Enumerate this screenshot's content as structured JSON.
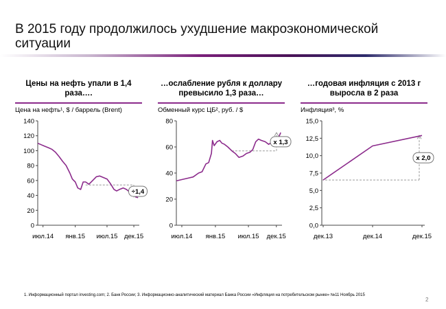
{
  "slide": {
    "title": "В 2015 году продолжилось ухудшение макроэкономической ситуации",
    "footnote": "1. Информационный портал investing.com; 2. Банк России; 3. Информационно-аналитический материал Банка России «Инфляция на потребительском рынке» №11 Ноябрь 2015",
    "page_number": "2"
  },
  "colors": {
    "line": "#8b2a8b",
    "axis": "#444444",
    "dashed": "#9a9a9a",
    "accent_rule": "#8b2a8b"
  },
  "panels": [
    {
      "heading": "Цены на нефть упали в 1,4 раза….",
      "axis_title": "Цена на нефть¹, $ / баррель (Brent)",
      "badge": "÷1,4"
    },
    {
      "heading": "…ослабление рубля к доллару превысило 1,3 раза…",
      "axis_title": "Обменный курс ЦБ², руб. / $",
      "badge": "x 1,3"
    },
    {
      "heading": "…годовая инфляция с 2013 г выросла в 2 раза",
      "axis_title": "Инфляция³, %",
      "badge": "x 2,0"
    }
  ],
  "chart_data": [
    {
      "type": "line",
      "title": "Цены на нефть упали в 1,4 раза….",
      "ylabel": "Цена на нефть¹, $ / баррель (Brent)",
      "ylim": [
        0,
        140
      ],
      "yticks": [
        "140",
        "120",
        "100",
        "80",
        "60",
        "40",
        "20",
        "0"
      ],
      "xlim": [
        "2014-06",
        "2016-01"
      ],
      "xticks": [
        "июл.14",
        "янв.15",
        "июл.15",
        "дек.15"
      ],
      "reference_level": 54,
      "annotation": "÷1,4",
      "series": [
        {
          "x": [
            "2014-06-01",
            "2014-06-20",
            "2014-07-10",
            "2014-08-01",
            "2014-08-20",
            "2014-09-10",
            "2014-10-01",
            "2014-10-20",
            "2014-11-10",
            "2014-12-01",
            "2014-12-15",
            "2015-01-01",
            "2015-01-15",
            "2015-02-01",
            "2015-02-15",
            "2015-03-01",
            "2015-03-20",
            "2015-04-10",
            "2015-05-01",
            "2015-05-20",
            "2015-06-10",
            "2015-07-01",
            "2015-07-20",
            "2015-08-10",
            "2015-08-25",
            "2015-09-10",
            "2015-10-01",
            "2015-10-20",
            "2015-11-10",
            "2015-11-25",
            "2015-12-10",
            "2015-12-25"
          ],
          "values": [
            110,
            108,
            106,
            104,
            102,
            98,
            92,
            86,
            80,
            70,
            62,
            58,
            50,
            48,
            58,
            58,
            55,
            60,
            65,
            66,
            64,
            62,
            56,
            48,
            46,
            48,
            50,
            48,
            44,
            46,
            38,
            37
          ]
        }
      ]
    },
    {
      "type": "line",
      "title": "…ослабление рубля к доллару превысило 1,3 раза…",
      "ylabel": "Обменный курс ЦБ², руб. / $",
      "ylim": [
        0,
        80
      ],
      "yticks": [
        "80",
        "60",
        "40",
        "20",
        "0"
      ],
      "xlim": [
        "2014-06",
        "2016-01"
      ],
      "xticks": [
        "июл.14",
        "янв.15",
        "июл.15",
        "дек.15"
      ],
      "reference_level": 57,
      "annotation": "x 1,3",
      "series": [
        {
          "x": [
            "2014-06-01",
            "2014-07-01",
            "2014-08-01",
            "2014-09-01",
            "2014-10-01",
            "2014-10-20",
            "2014-11-10",
            "2014-11-25",
            "2014-12-10",
            "2014-12-16",
            "2014-12-25",
            "2015-01-10",
            "2015-01-25",
            "2015-02-05",
            "2015-02-20",
            "2015-03-10",
            "2015-04-01",
            "2015-04-20",
            "2015-05-10",
            "2015-06-01",
            "2015-06-20",
            "2015-07-10",
            "2015-07-25",
            "2015-08-10",
            "2015-08-25",
            "2015-09-10",
            "2015-10-01",
            "2015-10-20",
            "2015-11-10",
            "2015-11-25",
            "2015-12-10",
            "2015-12-25"
          ],
          "values": [
            34,
            35,
            36,
            37,
            40,
            41,
            47,
            48,
            55,
            65,
            61,
            64,
            65,
            63,
            62,
            60,
            57,
            55,
            52,
            53,
            55,
            56,
            58,
            64,
            66,
            65,
            64,
            62,
            64,
            65,
            66,
            71
          ]
        }
      ]
    },
    {
      "type": "line",
      "title": "…годовая инфляция с 2013 г выросла в 2 раза",
      "ylabel": "Инфляция³, %",
      "ylim": [
        0,
        15
      ],
      "yticks": [
        "15,0",
        "12,5",
        "10,0",
        "7,5",
        "5,0",
        "2,5",
        "0,0"
      ],
      "categories": [
        "дек.13",
        "дек.14",
        "дек.15"
      ],
      "reference_level": 6.5,
      "annotation": "x 2,0",
      "series": [
        {
          "values": [
            6.5,
            11.4,
            12.9
          ]
        }
      ]
    }
  ]
}
